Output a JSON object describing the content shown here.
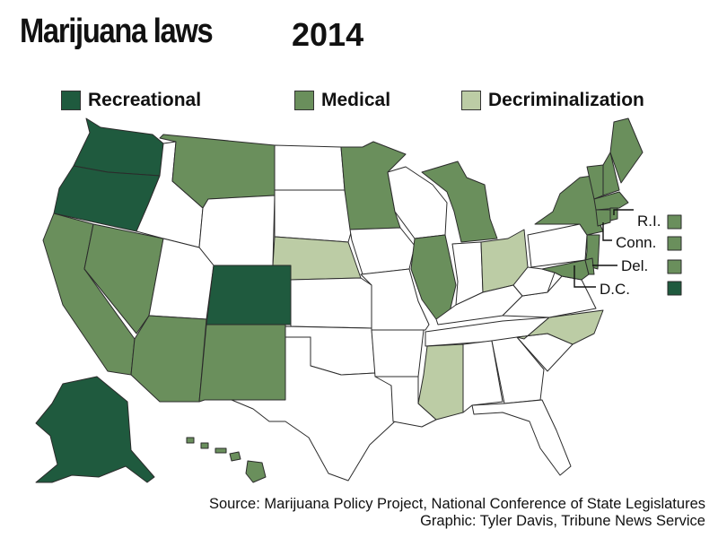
{
  "title": "Marijuana laws",
  "year": "2014",
  "legend": [
    {
      "label": "Recreational",
      "color": "#1f5a3e"
    },
    {
      "label": "Medical",
      "color": "#6a8f5c"
    },
    {
      "label": "Decriminalization",
      "color": "#bccca5"
    }
  ],
  "colors": {
    "recreational": "#1f5a3e",
    "medical": "#6a8f5c",
    "decriminalization": "#bccca5",
    "none": "#ffffff",
    "outline": "#2b2b2b"
  },
  "small_states": [
    {
      "label": "R.I.",
      "status": "medical"
    },
    {
      "label": "Conn.",
      "status": "medical"
    },
    {
      "label": "Del.",
      "status": "medical"
    },
    {
      "label": "D.C.",
      "status": "recreational"
    }
  ],
  "source_line": "Source: Marijuana Policy Project, National Conference of State Legislatures",
  "credit_line": "Graphic: Tyler Davis, Tribune News Service"
}
